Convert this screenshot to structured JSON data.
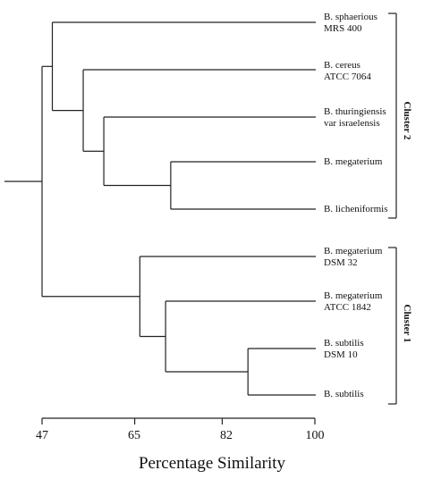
{
  "chart_data": {
    "type": "dendrogram",
    "x_axis": {
      "title": "Percentage Similarity",
      "range": [
        47,
        100
      ],
      "ticks": [
        47,
        65,
        82,
        100
      ],
      "tick_labels": [
        "47",
        "65",
        "82",
        "100"
      ]
    },
    "leaves": [
      {
        "name": "B. sphaerious",
        "sub": "MRS 400"
      },
      {
        "name": "B. cereus",
        "sub": "ATCC 7064"
      },
      {
        "name": "B. thuringiensis",
        "sub": "var israelensis"
      },
      {
        "name": "B. megaterium",
        "sub": ""
      },
      {
        "name": "B. licheniformis",
        "sub": ""
      },
      {
        "name": "B. megaterium",
        "sub": "DSM 32"
      },
      {
        "name": "B. megaterium",
        "sub": "ATCC 1842"
      },
      {
        "name": "B. subtilis",
        "sub": "DSM 10"
      },
      {
        "name": "B. subtilis",
        "sub": ""
      }
    ],
    "merges": [
      {
        "left": "L3",
        "right": "L4",
        "similarity": 72
      },
      {
        "left": "L2",
        "right": "M0",
        "similarity": 59
      },
      {
        "left": "L1",
        "right": "M1",
        "similarity": 55
      },
      {
        "left": "L0",
        "right": "M2",
        "similarity": 49
      },
      {
        "left": "L7",
        "right": "L8",
        "similarity": 87
      },
      {
        "left": "L6",
        "right": "M4",
        "similarity": 71
      },
      {
        "left": "L5",
        "right": "M5",
        "similarity": 66
      },
      {
        "left": "M3",
        "right": "M6",
        "similarity": 47
      }
    ],
    "root_stub_similarity": 46,
    "clusters": [
      {
        "label": "Cluster 2",
        "leaf_range": [
          0,
          4
        ]
      },
      {
        "label": "Cluster 1",
        "leaf_range": [
          5,
          8
        ]
      }
    ]
  }
}
